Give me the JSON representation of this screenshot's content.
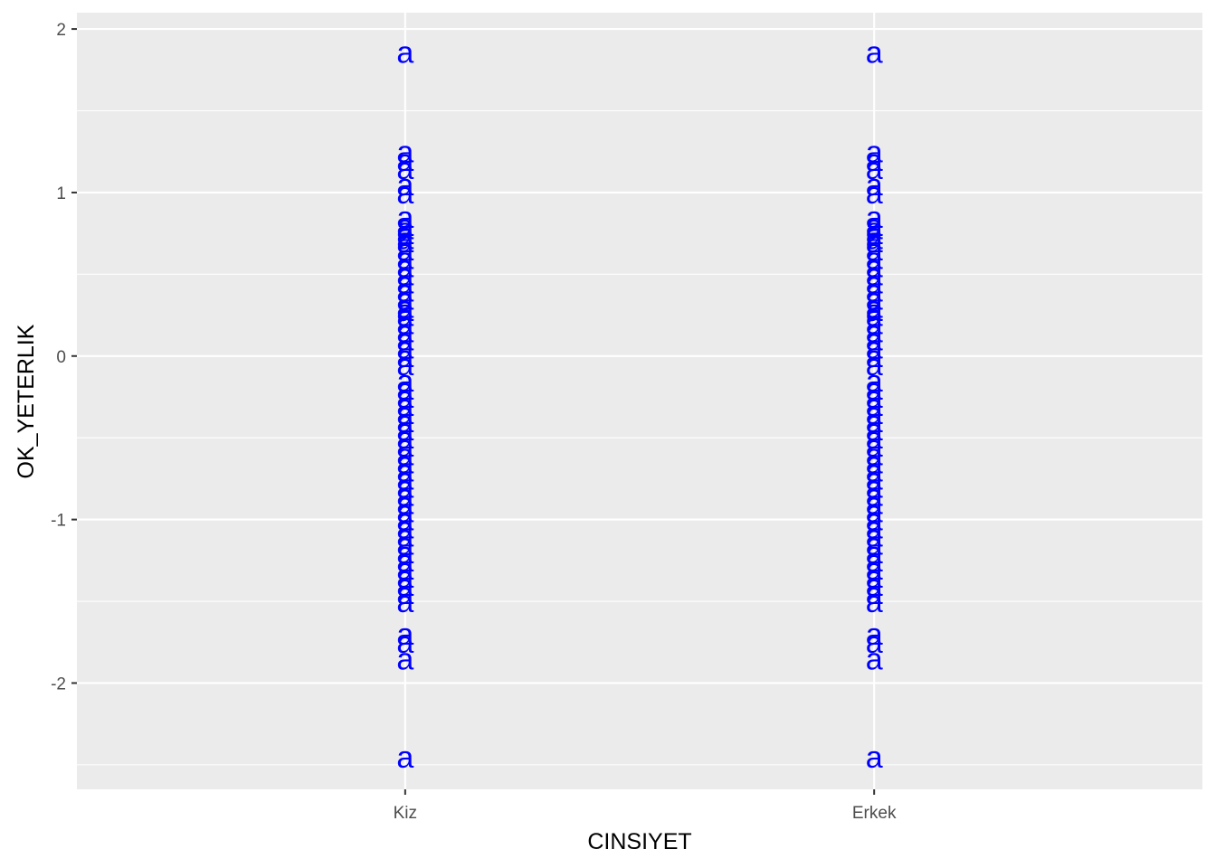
{
  "chart_data": {
    "type": "scatter",
    "title": "",
    "xlabel": "CINSIYET",
    "ylabel": "OK_YETERLIK",
    "categories": [
      "Kiz",
      "Erkek"
    ],
    "ylim": [
      -2.65,
      2.1
    ],
    "yticks": [
      -2,
      -1,
      0,
      1,
      2
    ],
    "grid": true,
    "legend": "none",
    "point_label": "a",
    "point_color": "#0000ff",
    "panel_color": "#ebebeb",
    "series": [
      {
        "category": "Kiz",
        "y": [
          1.86,
          1.25,
          1.2,
          1.15,
          1.05,
          1.0,
          0.85,
          0.8,
          0.78,
          0.75,
          0.72,
          0.7,
          0.65,
          0.6,
          0.55,
          0.5,
          0.45,
          0.4,
          0.35,
          0.3,
          0.28,
          0.25,
          0.2,
          0.15,
          0.1,
          0.05,
          0.0,
          -0.05,
          -0.15,
          -0.2,
          -0.25,
          -0.3,
          -0.35,
          -0.4,
          -0.45,
          -0.5,
          -0.55,
          -0.6,
          -0.65,
          -0.7,
          -0.75,
          -0.8,
          -0.85,
          -0.9,
          -0.95,
          -1.0,
          -1.05,
          -1.1,
          -1.15,
          -1.2,
          -1.25,
          -1.3,
          -1.35,
          -1.4,
          -1.45,
          -1.5,
          -1.7,
          -1.75,
          -1.85,
          -2.45
        ]
      },
      {
        "category": "Erkek",
        "y": [
          1.86,
          1.25,
          1.2,
          1.15,
          1.05,
          1.0,
          0.85,
          0.8,
          0.78,
          0.75,
          0.72,
          0.7,
          0.65,
          0.6,
          0.55,
          0.5,
          0.45,
          0.4,
          0.35,
          0.3,
          0.28,
          0.25,
          0.2,
          0.15,
          0.1,
          0.05,
          0.0,
          -0.05,
          -0.15,
          -0.2,
          -0.25,
          -0.3,
          -0.35,
          -0.4,
          -0.45,
          -0.5,
          -0.55,
          -0.6,
          -0.65,
          -0.7,
          -0.75,
          -0.8,
          -0.85,
          -0.9,
          -0.95,
          -1.0,
          -1.05,
          -1.1,
          -1.15,
          -1.2,
          -1.25,
          -1.3,
          -1.35,
          -1.4,
          -1.45,
          -1.5,
          -1.7,
          -1.75,
          -1.85,
          -2.45
        ]
      }
    ]
  }
}
